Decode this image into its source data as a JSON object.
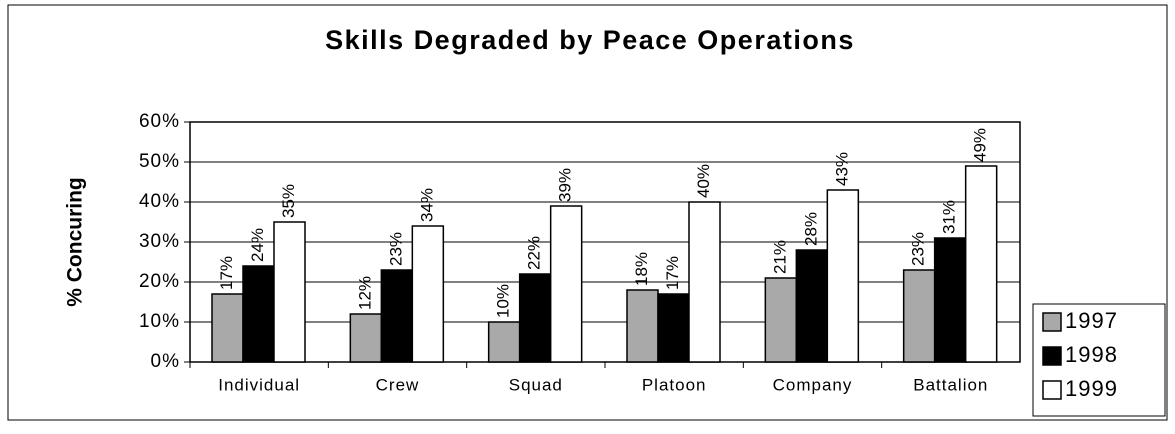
{
  "chart_data": {
    "type": "bar",
    "title": "Skills Degraded by Peace Operations",
    "y_label": "% Concuring",
    "categories": [
      "Individual",
      "Crew",
      "Squad",
      "Platoon",
      "Company",
      "Battalion"
    ],
    "series": [
      {
        "name": "1997",
        "color": "#a9a9a9",
        "values": [
          17,
          12,
          10,
          18,
          21,
          23
        ],
        "value_labels": [
          "17%",
          "12%",
          "10%",
          "18%",
          "21%",
          "23%"
        ]
      },
      {
        "name": "1998",
        "color": "#000000",
        "values": [
          24,
          23,
          22,
          17,
          28,
          31
        ],
        "value_labels": [
          "24%",
          "23%",
          "22%",
          "17%",
          "28%",
          "31%"
        ]
      },
      {
        "name": "1999",
        "color": "#ffffff",
        "values": [
          35,
          34,
          39,
          40,
          43,
          49
        ],
        "value_labels": [
          "35%",
          "34%",
          "39%",
          "40%",
          "43%",
          "49%"
        ]
      }
    ],
    "ylim": [
      0,
      60
    ],
    "yticks": [
      {
        "value": 0,
        "label": "0%"
      },
      {
        "value": 10,
        "label": "10%"
      },
      {
        "value": 20,
        "label": "20%"
      },
      {
        "value": 30,
        "label": "30%"
      },
      {
        "value": 40,
        "label": "40%"
      },
      {
        "value": 50,
        "label": "50%"
      },
      {
        "value": 60,
        "label": "60%"
      }
    ],
    "grid": true,
    "legend": "right"
  }
}
